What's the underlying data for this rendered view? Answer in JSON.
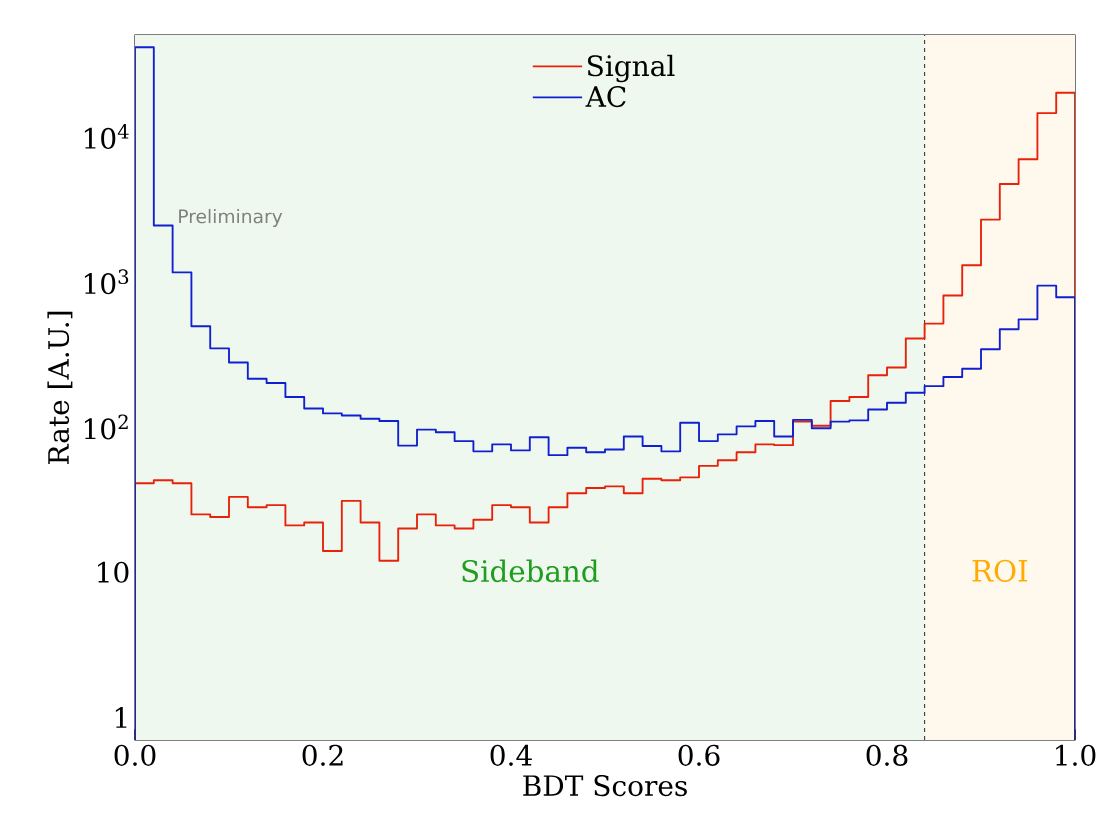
{
  "chart_data": {
    "type": "histogram",
    "xlabel": "BDT Scores",
    "ylabel": "Rate [A.U.]",
    "bins": [
      0.0,
      0.02,
      0.04,
      0.06,
      0.08,
      0.1,
      0.12,
      0.14,
      0.16,
      0.18,
      0.2,
      0.22,
      0.24,
      0.26,
      0.28,
      0.3,
      0.32,
      0.34,
      0.36,
      0.38,
      0.4,
      0.42,
      0.44,
      0.46,
      0.48,
      0.5,
      0.52,
      0.54,
      0.56,
      0.58,
      0.6,
      0.62,
      0.64,
      0.66,
      0.68,
      0.7,
      0.72,
      0.74,
      0.76,
      0.78,
      0.8,
      0.82,
      0.84,
      0.86,
      0.88,
      0.9,
      0.92,
      0.94,
      0.96,
      0.98,
      1.0
    ],
    "series": [
      {
        "name": "Signal",
        "color": "#e8220a",
        "values": [
          41,
          43,
          41,
          25,
          24,
          33,
          28,
          29,
          21,
          22,
          14,
          31,
          22,
          12,
          20,
          25,
          21,
          20,
          23,
          29,
          28,
          22,
          28,
          35,
          38,
          39,
          35,
          44,
          43,
          45,
          54,
          59,
          67,
          76,
          75,
          109,
          102,
          151,
          161,
          227,
          257,
          407,
          515,
          804,
          1300,
          2680,
          4710,
          6970,
          14500,
          20000
        ]
      },
      {
        "name": "AC",
        "color": "#1020d0",
        "values": [
          41200,
          2440,
          1160,
          494,
          348,
          278,
          215,
          201,
          161,
          134,
          124,
          120,
          114,
          110,
          74.5,
          96,
          92,
          80,
          68,
          76,
          69,
          85,
          64,
          72,
          67,
          70,
          86,
          74,
          68,
          107,
          80,
          89,
          101,
          110,
          86,
          112,
          98,
          109,
          111,
          132,
          147,
          172,
          191,
          221,
          252,
          343,
          471,
          551,
          940,
          783
        ]
      }
    ],
    "xlim": [
      0.0,
      1.0
    ],
    "xticks": [
      {
        "value": 0.0,
        "label": "0.0"
      },
      0.2,
      0.4,
      0.6,
      0.8,
      {
        "value": 1.0,
        "label": "1.0"
      }
    ],
    "ylim": [
      0.7,
      50000
    ],
    "yticks": [
      1,
      10,
      {
        "value": 100,
        "label": "10$^{2}$"
      },
      {
        "value": 1000,
        "label": "10$^{3}$"
      },
      {
        "value": 10000,
        "label": "10$^{4}$"
      }
    ],
    "log": "y",
    "legend": "top",
    "ref_lines": [
      {
        "axis": "x",
        "value": 0.84,
        "color": "#333333",
        "line_style": "dashed"
      }
    ],
    "bands": [
      {
        "axis": "x",
        "from": 0.0,
        "to": 0.84,
        "label": "Sideband",
        "color": "#eff8ef"
      },
      {
        "axis": "x",
        "from": 0.84,
        "to": 1.0,
        "label": "ROI",
        "color": "#fff9ed"
      }
    ],
    "annotations": [
      "Preliminary"
    ]
  }
}
